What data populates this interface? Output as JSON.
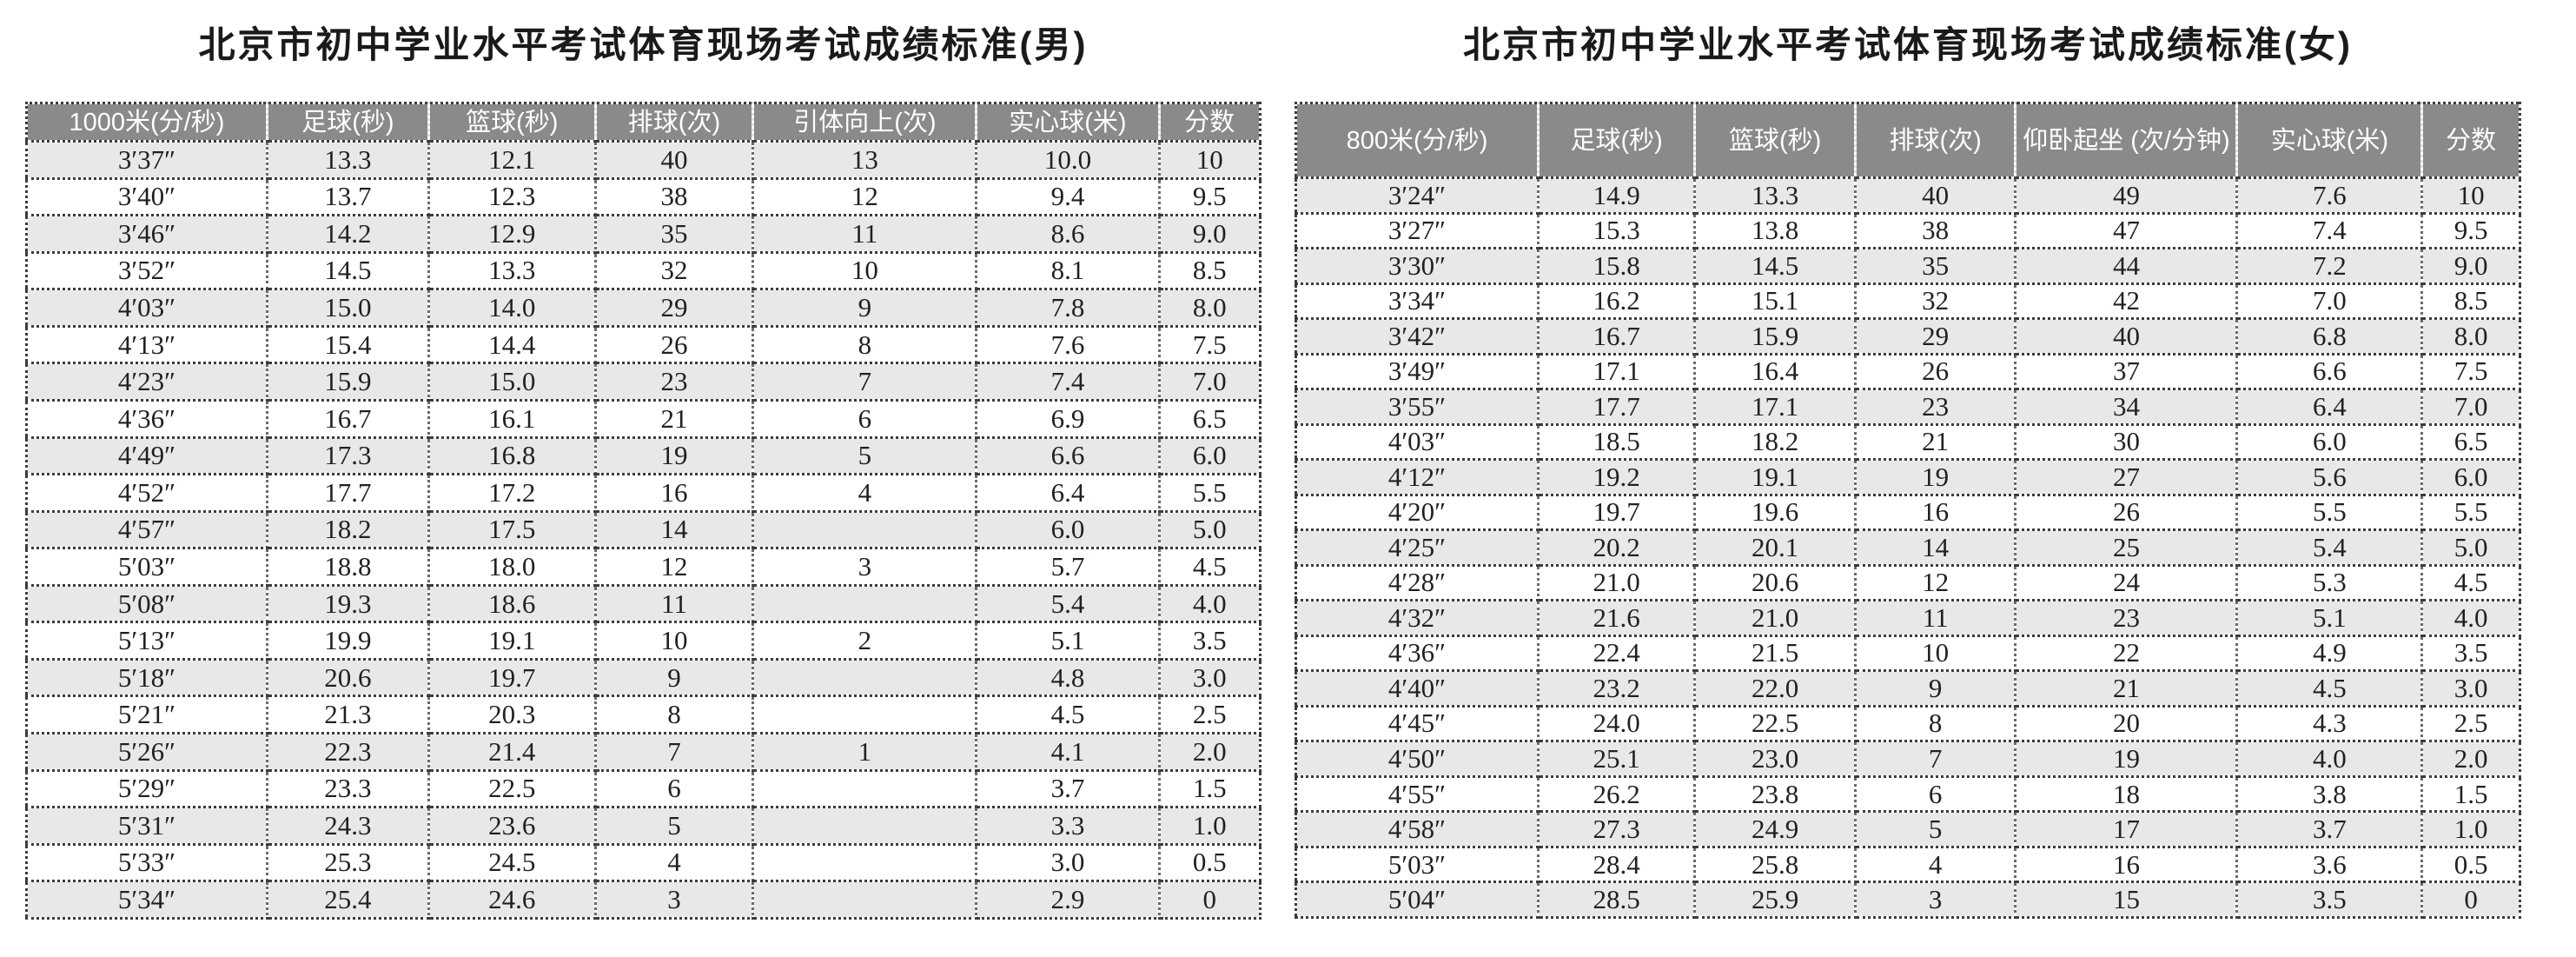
{
  "colors": {
    "page_bg": "#ffffff",
    "header_bg": "#8a8a8a",
    "header_text": "#ffffff",
    "row_stripe_bg": "#e8e8e8",
    "row_bg": "#ffffff",
    "border_dark": "#3c3c3c",
    "header_divider_light": "#e0e0e0",
    "body_text": "#231f20",
    "title_text": "#1a1a1a"
  },
  "tables": [
    {
      "id": "male",
      "title": "北京市初中学业水平考试体育现场考试成绩标准(男)",
      "headers": [
        "1000米(分/秒)",
        "足球(秒)",
        "篮球(秒)",
        "排球(次)",
        "引体向上(次)",
        "实心球(米)",
        "分数"
      ],
      "rows": [
        [
          "3′37″",
          "13.3",
          "12.1",
          "40",
          "13",
          "10.0",
          "10"
        ],
        [
          "3′40″",
          "13.7",
          "12.3",
          "38",
          "12",
          "9.4",
          "9.5"
        ],
        [
          "3′46″",
          "14.2",
          "12.9",
          "35",
          "11",
          "8.6",
          "9.0"
        ],
        [
          "3′52″",
          "14.5",
          "13.3",
          "32",
          "10",
          "8.1",
          "8.5"
        ],
        [
          "4′03″",
          "15.0",
          "14.0",
          "29",
          "9",
          "7.8",
          "8.0"
        ],
        [
          "4′13″",
          "15.4",
          "14.4",
          "26",
          "8",
          "7.6",
          "7.5"
        ],
        [
          "4′23″",
          "15.9",
          "15.0",
          "23",
          "7",
          "7.4",
          "7.0"
        ],
        [
          "4′36″",
          "16.7",
          "16.1",
          "21",
          "6",
          "6.9",
          "6.5"
        ],
        [
          "4′49″",
          "17.3",
          "16.8",
          "19",
          "5",
          "6.6",
          "6.0"
        ],
        [
          "4′52″",
          "17.7",
          "17.2",
          "16",
          "4",
          "6.4",
          "5.5"
        ],
        [
          "4′57″",
          "18.2",
          "17.5",
          "14",
          "",
          "6.0",
          "5.0"
        ],
        [
          "5′03″",
          "18.8",
          "18.0",
          "12",
          "3",
          "5.7",
          "4.5"
        ],
        [
          "5′08″",
          "19.3",
          "18.6",
          "11",
          "",
          "5.4",
          "4.0"
        ],
        [
          "5′13″",
          "19.9",
          "19.1",
          "10",
          "2",
          "5.1",
          "3.5"
        ],
        [
          "5′18″",
          "20.6",
          "19.7",
          "9",
          "",
          "4.8",
          "3.0"
        ],
        [
          "5′21″",
          "21.3",
          "20.3",
          "8",
          "",
          "4.5",
          "2.5"
        ],
        [
          "5′26″",
          "22.3",
          "21.4",
          "7",
          "1",
          "4.1",
          "2.0"
        ],
        [
          "5′29″",
          "23.3",
          "22.5",
          "6",
          "",
          "3.7",
          "1.5"
        ],
        [
          "5′31″",
          "24.3",
          "23.6",
          "5",
          "",
          "3.3",
          "1.0"
        ],
        [
          "5′33″",
          "25.3",
          "24.5",
          "4",
          "",
          "3.0",
          "0.5"
        ],
        [
          "5′34″",
          "25.4",
          "24.6",
          "3",
          "",
          "2.9",
          "0"
        ]
      ]
    },
    {
      "id": "female",
      "title": "北京市初中学业水平考试体育现场考试成绩标准(女)",
      "headers": [
        "800米(分/秒)",
        "足球(秒)",
        "篮球(秒)",
        "排球(次)",
        "仰卧起坐 (次/分钟)",
        "实心球(米)",
        "分数"
      ],
      "rows": [
        [
          "3′24″",
          "14.9",
          "13.3",
          "40",
          "49",
          "7.6",
          "10"
        ],
        [
          "3′27″",
          "15.3",
          "13.8",
          "38",
          "47",
          "7.4",
          "9.5"
        ],
        [
          "3′30″",
          "15.8",
          "14.5",
          "35",
          "44",
          "7.2",
          "9.0"
        ],
        [
          "3′34″",
          "16.2",
          "15.1",
          "32",
          "42",
          "7.0",
          "8.5"
        ],
        [
          "3′42″",
          "16.7",
          "15.9",
          "29",
          "40",
          "6.8",
          "8.0"
        ],
        [
          "3′49″",
          "17.1",
          "16.4",
          "26",
          "37",
          "6.6",
          "7.5"
        ],
        [
          "3′55″",
          "17.7",
          "17.1",
          "23",
          "34",
          "6.4",
          "7.0"
        ],
        [
          "4′03″",
          "18.5",
          "18.2",
          "21",
          "30",
          "6.0",
          "6.5"
        ],
        [
          "4′12″",
          "19.2",
          "19.1",
          "19",
          "27",
          "5.6",
          "6.0"
        ],
        [
          "4′20″",
          "19.7",
          "19.6",
          "16",
          "26",
          "5.5",
          "5.5"
        ],
        [
          "4′25″",
          "20.2",
          "20.1",
          "14",
          "25",
          "5.4",
          "5.0"
        ],
        [
          "4′28″",
          "21.0",
          "20.6",
          "12",
          "24",
          "5.3",
          "4.5"
        ],
        [
          "4′32″",
          "21.6",
          "21.0",
          "11",
          "23",
          "5.1",
          "4.0"
        ],
        [
          "4′36″",
          "22.4",
          "21.5",
          "10",
          "22",
          "4.9",
          "3.5"
        ],
        [
          "4′40″",
          "23.2",
          "22.0",
          "9",
          "21",
          "4.5",
          "3.0"
        ],
        [
          "4′45″",
          "24.0",
          "22.5",
          "8",
          "20",
          "4.3",
          "2.5"
        ],
        [
          "4′50″",
          "25.1",
          "23.0",
          "7",
          "19",
          "4.0",
          "2.0"
        ],
        [
          "4′55″",
          "26.2",
          "23.8",
          "6",
          "18",
          "3.8",
          "1.5"
        ],
        [
          "4′58″",
          "27.3",
          "24.9",
          "5",
          "17",
          "3.7",
          "1.0"
        ],
        [
          "5′03″",
          "28.4",
          "25.8",
          "4",
          "16",
          "3.6",
          "0.5"
        ],
        [
          "5′04″",
          "28.5",
          "25.9",
          "3",
          "15",
          "3.5",
          "0"
        ]
      ]
    }
  ]
}
